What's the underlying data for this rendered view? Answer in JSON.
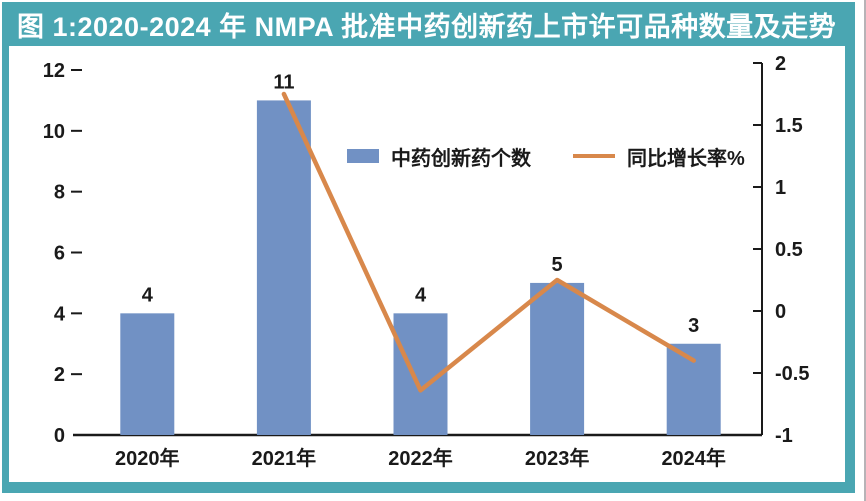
{
  "title": "图 1:2020-2024 年 NMPA 批准中药创新药上市许可品种数量及走势",
  "legend": {
    "bars_label": "中药创新药个数",
    "line_label": "同比增长率%"
  },
  "colors": {
    "frame_teal": "#4aa6b2",
    "bar_blue": "#7191c4",
    "line_orange": "#d8884b",
    "axis_text": "#1a1a1a",
    "title_text": "#ffffff"
  },
  "chart_data": {
    "type": "bar",
    "subtype": "bar+line combo with dual y-axes",
    "title": "图 1:2020-2024 年 NMPA 批准中药创新药上市许可品种数量及走势",
    "categories": [
      "2020年",
      "2021年",
      "2022年",
      "2023年",
      "2024年"
    ],
    "series": [
      {
        "name": "中药创新药个数",
        "type": "bar",
        "axis": "left",
        "values": [
          4,
          11,
          4,
          5,
          3
        ],
        "data_labels": [
          "4",
          "11",
          "4",
          "5",
          "3"
        ]
      },
      {
        "name": "同比增长率%",
        "type": "line",
        "axis": "right",
        "values": [
          null,
          1.75,
          -0.64,
          0.25,
          -0.4
        ]
      }
    ],
    "left_axis": {
      "min": 0,
      "max": 12,
      "tick_values": [
        0,
        2,
        4,
        6,
        8,
        10,
        12
      ],
      "tick_labels": [
        "0",
        "2",
        "4",
        "6",
        "8",
        "10",
        "12"
      ]
    },
    "right_axis": {
      "min": -1,
      "max": 2,
      "tick_values": [
        -1,
        -0.5,
        0,
        0.5,
        1,
        1.5,
        2
      ],
      "tick_labels": [
        "-1",
        "-0.5",
        "0",
        "0.5",
        "1",
        "1.5",
        "2"
      ]
    },
    "grid": false,
    "legend_position": "upper-center-inside"
  }
}
